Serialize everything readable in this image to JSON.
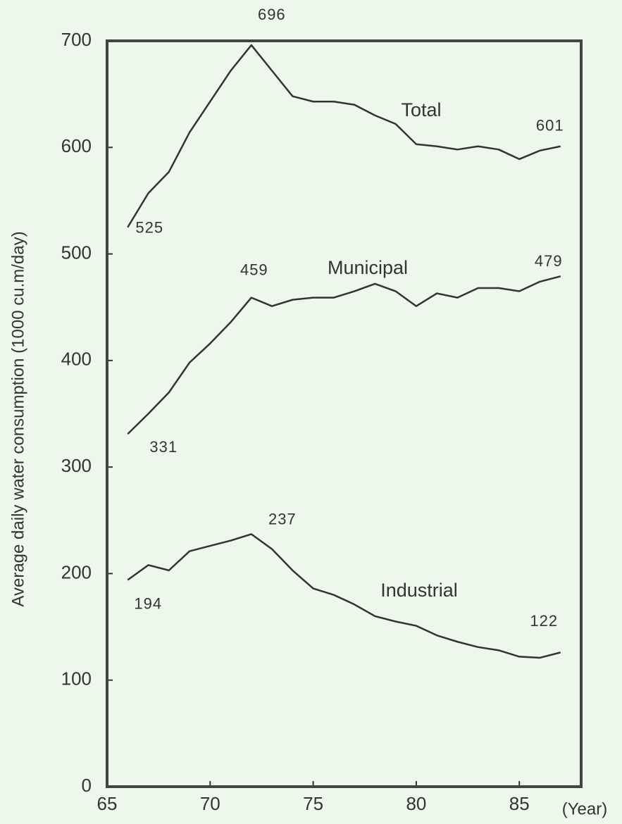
{
  "chart_data": {
    "type": "line",
    "y_label": "Average daily water consumption  (1000 cu.m/day)",
    "x_label": "(Year)",
    "x": [
      66,
      67,
      68,
      69,
      70,
      71,
      72,
      73,
      74,
      75,
      76,
      77,
      78,
      79,
      80,
      81,
      82,
      83,
      84,
      85,
      86,
      87
    ],
    "series": [
      {
        "name": "Total",
        "color": "#333333",
        "values": [
          525,
          557,
          577,
          614,
          643,
          672,
          696,
          672,
          648,
          643,
          643,
          640,
          630,
          622,
          603,
          601,
          598,
          601,
          598,
          589,
          597,
          601
        ],
        "value_labels": [
          "525",
          null,
          null,
          null,
          null,
          null,
          "696",
          null,
          null,
          null,
          null,
          null,
          null,
          null,
          null,
          null,
          null,
          null,
          null,
          null,
          null,
          "601"
        ]
      },
      {
        "name": "Municipal",
        "color": "#333333",
        "values": [
          331,
          350,
          370,
          398,
          416,
          436,
          459,
          451,
          457,
          459,
          459,
          465,
          472,
          465,
          451,
          463,
          459,
          468,
          468,
          465,
          474,
          479
        ],
        "value_labels": [
          "331",
          null,
          null,
          null,
          null,
          null,
          "459",
          null,
          null,
          null,
          null,
          null,
          null,
          null,
          null,
          null,
          null,
          null,
          null,
          null,
          null,
          "479"
        ]
      },
      {
        "name": "Industrial",
        "color": "#333333",
        "values": [
          194,
          208,
          203,
          221,
          226,
          231,
          237,
          223,
          203,
          186,
          180,
          171,
          160,
          155,
          151,
          142,
          136,
          131,
          128,
          122,
          121,
          126
        ],
        "value_labels": [
          "194",
          null,
          null,
          null,
          null,
          null,
          "237",
          null,
          null,
          null,
          null,
          null,
          null,
          null,
          null,
          null,
          null,
          null,
          null,
          "122",
          null,
          null
        ]
      }
    ],
    "xlim": [
      65,
      88
    ],
    "xticks": [
      65,
      70,
      75,
      80,
      85
    ],
    "ylim": [
      0,
      700
    ],
    "yticks": [
      0,
      100,
      200,
      300,
      400,
      500,
      600,
      700
    ],
    "grid": false
  }
}
